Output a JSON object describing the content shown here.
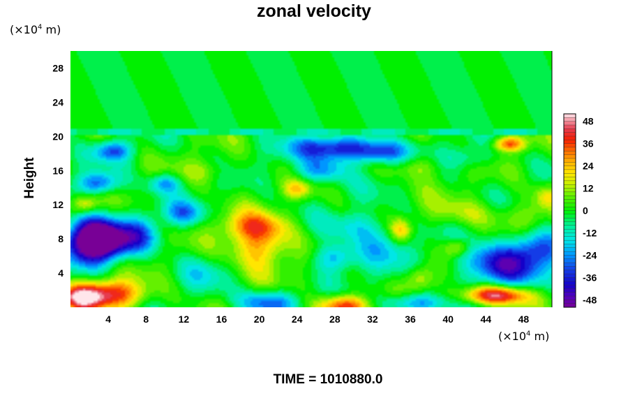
{
  "chart_data": {
    "type": "heatmap",
    "title": "zonal velocity",
    "xlabel": "",
    "ylabel": "Height",
    "x_unit_label": "(×10",
    "y_unit_label": "(×10",
    "unit_exponent": "4",
    "unit_suffix": " m)",
    "x_ticks": [
      4,
      8,
      12,
      16,
      20,
      24,
      28,
      32,
      36,
      40,
      44,
      48
    ],
    "y_ticks": [
      4,
      8,
      12,
      16,
      20,
      24,
      28
    ],
    "xlim": [
      0,
      51
    ],
    "ylim": [
      0,
      30
    ],
    "colorbar_ticks": [
      48,
      36,
      24,
      12,
      0,
      -12,
      -24,
      -36,
      -48
    ],
    "colorbar_range": [
      -52,
      52
    ],
    "features": [
      {
        "x": 3.5,
        "y": 7.8,
        "value": -50,
        "sx": 2.2,
        "sy": 1.5
      },
      {
        "x": 2.0,
        "y": 8.0,
        "value": -40,
        "sx": 2.0,
        "sy": 2.0
      },
      {
        "x": 28.5,
        "y": 18.6,
        "value": -40,
        "sx": 3.5,
        "sy": 1.0
      },
      {
        "x": 45.5,
        "y": 5.0,
        "value": -40,
        "sx": 3.0,
        "sy": 1.8
      },
      {
        "x": 49.5,
        "y": 7.0,
        "value": -28,
        "sx": 2.0,
        "sy": 1.5
      },
      {
        "x": 3.0,
        "y": 14.5,
        "value": -32,
        "sx": 1.5,
        "sy": 0.9
      },
      {
        "x": 4.5,
        "y": 18.3,
        "value": -28,
        "sx": 1.4,
        "sy": 0.8
      },
      {
        "x": 21.0,
        "y": 0.6,
        "value": -30,
        "sx": 2.2,
        "sy": 1.0
      },
      {
        "x": 28.0,
        "y": 5.8,
        "value": -26,
        "sx": 1.6,
        "sy": 1.2
      },
      {
        "x": 36.5,
        "y": 0.5,
        "value": -28,
        "sx": 2.5,
        "sy": 0.8
      },
      {
        "x": 33.0,
        "y": 7.5,
        "value": -18,
        "sx": 2.0,
        "sy": 2.0
      },
      {
        "x": 10.0,
        "y": 14.5,
        "value": -24,
        "sx": 1.2,
        "sy": 0.8
      },
      {
        "x": 12.0,
        "y": 11.0,
        "value": -22,
        "sx": 1.5,
        "sy": 1.0
      },
      {
        "x": 26.5,
        "y": 16.0,
        "value": -24,
        "sx": 2.0,
        "sy": 1.0
      },
      {
        "x": 33.0,
        "y": 18.0,
        "value": -22,
        "sx": 2.0,
        "sy": 0.9
      },
      {
        "x": 30.0,
        "y": 9.5,
        "value": -14,
        "sx": 2.0,
        "sy": 1.2
      },
      {
        "x": 42.0,
        "y": 17.5,
        "value": -14,
        "sx": 1.8,
        "sy": 1.0
      },
      {
        "x": 7.5,
        "y": 8.5,
        "value": -20,
        "sx": 1.5,
        "sy": 1.5
      },
      {
        "x": 4.0,
        "y": 1.5,
        "value": 42,
        "sx": 2.8,
        "sy": 1.2
      },
      {
        "x": 1.0,
        "y": 1.0,
        "value": 28,
        "sx": 1.4,
        "sy": 1.0
      },
      {
        "x": 45.0,
        "y": 1.4,
        "value": 50,
        "sx": 2.6,
        "sy": 0.8
      },
      {
        "x": 29.0,
        "y": 0.2,
        "value": 40,
        "sx": 2.0,
        "sy": 0.9
      },
      {
        "x": 20.0,
        "y": 7.0,
        "value": 30,
        "sx": 2.2,
        "sy": 2.0
      },
      {
        "x": 19.5,
        "y": 9.5,
        "value": 22,
        "sx": 2.5,
        "sy": 1.2
      },
      {
        "x": 35.0,
        "y": 9.0,
        "value": 26,
        "sx": 0.8,
        "sy": 1.0
      },
      {
        "x": 46.5,
        "y": 19.1,
        "value": 34,
        "sx": 1.2,
        "sy": 0.6
      },
      {
        "x": 41.0,
        "y": 7.0,
        "value": 22,
        "sx": 1.0,
        "sy": 0.8
      },
      {
        "x": 37.0,
        "y": 3.5,
        "value": 18,
        "sx": 1.0,
        "sy": 1.0
      },
      {
        "x": 1.5,
        "y": 12.0,
        "value": 24,
        "sx": 1.0,
        "sy": 0.8
      },
      {
        "x": 24.0,
        "y": 13.8,
        "value": 18,
        "sx": 1.0,
        "sy": 0.7
      },
      {
        "x": 37.0,
        "y": 16.5,
        "value": 14,
        "sx": 2.0,
        "sy": 1.0
      },
      {
        "x": 42.0,
        "y": 11.0,
        "value": 12,
        "sx": 3.0,
        "sy": 1.2
      },
      {
        "x": 50.5,
        "y": 13.0,
        "value": 18,
        "sx": 1.0,
        "sy": 1.0
      },
      {
        "x": 14.5,
        "y": 16.0,
        "value": 10,
        "sx": 2.0,
        "sy": 1.0
      },
      {
        "x": 48.0,
        "y": 10.5,
        "value": 10,
        "sx": 2.0,
        "sy": 1.2
      },
      {
        "x": 14.0,
        "y": 4.0,
        "value": -10,
        "sx": 2.0,
        "sy": 1.5
      }
    ],
    "stratosphere": {
      "value_upper": -2,
      "value_at_20_5": -8,
      "value_band": 2,
      "boundary_y": 20.5
    }
  },
  "time_label": "TIME = 1010880.0"
}
